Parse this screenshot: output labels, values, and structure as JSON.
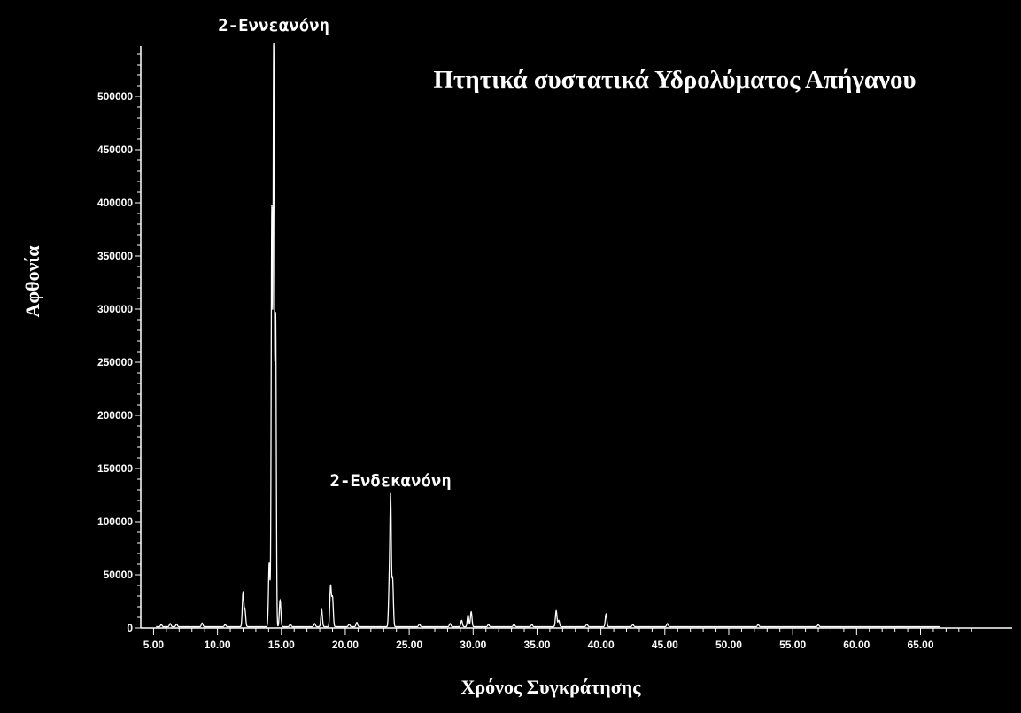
{
  "colors": {
    "background": "#000000",
    "foreground": "#ffffff"
  },
  "chart_data": {
    "type": "line",
    "title": "Πτητικά συστατικά Υδρολύματος Απήγανου",
    "xlabel": "Χρόνος Συγκράτησης",
    "ylabel": "Αφθονία",
    "xlim": [
      4.0,
      70.0
    ],
    "ylim": [
      0,
      550000
    ],
    "xticks": [
      5,
      10,
      15,
      20,
      25,
      30,
      35,
      40,
      45,
      50,
      55,
      60,
      65
    ],
    "xtick_labels": [
      "5.00",
      "10.00",
      "15.00",
      "20.00",
      "25.00",
      "30.00",
      "35.00",
      "40.00",
      "45.00",
      "50.00",
      "55.00",
      "60.00",
      "65.00"
    ],
    "yticks": [
      0,
      50000,
      100000,
      150000,
      200000,
      250000,
      300000,
      350000,
      400000,
      450000,
      500000
    ],
    "ytick_labels": [
      "0",
      "50000",
      "100000",
      "150000",
      "200000",
      "250000",
      "300000",
      "350000",
      "400000",
      "450000",
      "500000"
    ],
    "grid": false,
    "baseline": 1200,
    "peaks": [
      {
        "x": 5.6,
        "y": 2000
      },
      {
        "x": 6.3,
        "y": 3000
      },
      {
        "x": 6.8,
        "y": 2500
      },
      {
        "x": 8.8,
        "y": 3500
      },
      {
        "x": 10.6,
        "y": 2000
      },
      {
        "x": 12.0,
        "y": 32000
      },
      {
        "x": 12.15,
        "y": 15000
      },
      {
        "x": 14.05,
        "y": 60000
      },
      {
        "x": 14.25,
        "y": 390000
      },
      {
        "x": 14.4,
        "y": 548000
      },
      {
        "x": 14.55,
        "y": 290000
      },
      {
        "x": 14.9,
        "y": 25000
      },
      {
        "x": 15.7,
        "y": 2500
      },
      {
        "x": 17.6,
        "y": 3000
      },
      {
        "x": 18.15,
        "y": 16000
      },
      {
        "x": 18.85,
        "y": 38000
      },
      {
        "x": 19.0,
        "y": 27000
      },
      {
        "x": 20.3,
        "y": 2500
      },
      {
        "x": 20.9,
        "y": 4000
      },
      {
        "x": 23.45,
        "y": 45000
      },
      {
        "x": 23.55,
        "y": 112000
      },
      {
        "x": 23.7,
        "y": 45000
      },
      {
        "x": 25.8,
        "y": 2500
      },
      {
        "x": 28.2,
        "y": 3000
      },
      {
        "x": 29.1,
        "y": 6000
      },
      {
        "x": 29.6,
        "y": 11000
      },
      {
        "x": 29.85,
        "y": 14000
      },
      {
        "x": 31.2,
        "y": 2000
      },
      {
        "x": 33.2,
        "y": 2500
      },
      {
        "x": 34.6,
        "y": 2000
      },
      {
        "x": 36.5,
        "y": 15000
      },
      {
        "x": 36.7,
        "y": 6000
      },
      {
        "x": 38.9,
        "y": 2500
      },
      {
        "x": 40.4,
        "y": 12000
      },
      {
        "x": 42.5,
        "y": 2000
      },
      {
        "x": 45.2,
        "y": 3000
      },
      {
        "x": 52.3,
        "y": 2000
      },
      {
        "x": 57.0,
        "y": 1800
      }
    ],
    "annotations": [
      {
        "text": "2-Εννεανόνη",
        "x": 14.4,
        "y": 560000
      },
      {
        "text": "2-Ενδεκανόνη",
        "x": 23.55,
        "y": 140000
      }
    ]
  }
}
